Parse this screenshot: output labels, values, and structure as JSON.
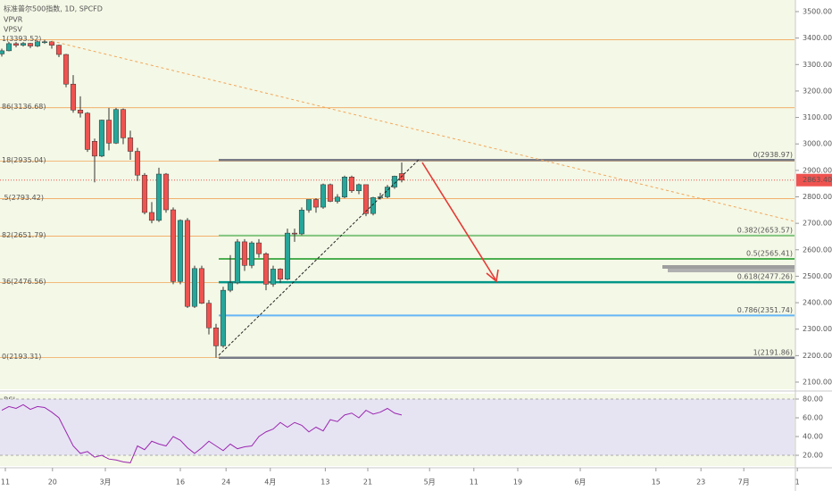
{
  "chart_data": {
    "type": "candlestick",
    "title": "标准普尔500指数, 1D, SPCFD",
    "indicators": [
      "VPVR",
      "VPSV"
    ],
    "xlim": [
      -0.25,
      111
    ],
    "xticks": [
      {
        "value": 0.5,
        "label": "11"
      },
      {
        "value": 7.1,
        "label": "20"
      },
      {
        "value": 14.5,
        "label": "3月"
      },
      {
        "value": 25,
        "label": "16"
      },
      {
        "value": 31.4,
        "label": "24"
      },
      {
        "value": 37.6,
        "label": "4月"
      },
      {
        "value": 45.3,
        "label": "13"
      },
      {
        "value": 51.25,
        "label": "21"
      },
      {
        "value": 59.9,
        "label": "5月"
      },
      {
        "value": 66.1,
        "label": "11"
      },
      {
        "value": 72.25,
        "label": "19"
      },
      {
        "value": 81,
        "label": "6月"
      },
      {
        "value": 91.6,
        "label": "15"
      },
      {
        "value": 97.9,
        "label": "23"
      },
      {
        "value": 103.9,
        "label": "7月"
      },
      {
        "value": 111.4,
        "label": "1"
      }
    ],
    "ylim": [
      2100,
      3500
    ],
    "yticks": [
      {
        "value": 2100,
        "label": "2100.00"
      },
      {
        "value": 2200,
        "label": "2200.00"
      },
      {
        "value": 2300,
        "label": "2300.00"
      },
      {
        "value": 2400,
        "label": "2400.00"
      },
      {
        "value": 2500,
        "label": "2500.00"
      },
      {
        "value": 2600,
        "label": "2600.00"
      },
      {
        "value": 2700,
        "label": "2700.00"
      },
      {
        "value": 2800,
        "label": "2800.00"
      },
      {
        "value": 2900,
        "label": "2900.00"
      },
      {
        "value": 3000,
        "label": "3000.00"
      },
      {
        "value": 3100,
        "label": "3100.00"
      },
      {
        "value": 3200,
        "label": "3200.00"
      },
      {
        "value": 3300,
        "label": "3300.00"
      },
      {
        "value": 3400,
        "label": "3400.00"
      },
      {
        "value": 3500,
        "label": "3500.00"
      }
    ],
    "grid": false,
    "up_color": "#26a69a",
    "down_color": "#ef5350",
    "ohlc": [
      [
        3340,
        3360,
        3330,
        3352
      ],
      [
        3352,
        3385,
        3350,
        3379
      ],
      [
        3379,
        3385,
        3365,
        3373
      ],
      [
        3373,
        3385,
        3368,
        3380
      ],
      [
        3380,
        3382,
        3362,
        3370
      ],
      [
        3370,
        3390,
        3366,
        3386
      ],
      [
        3386,
        3393.52,
        3378,
        3386
      ],
      [
        3386,
        3389,
        3360,
        3373
      ],
      [
        3373,
        3375,
        3328,
        3338
      ],
      [
        3338,
        3340,
        3214,
        3226
      ],
      [
        3226,
        3260,
        3118,
        3128
      ],
      [
        3128,
        3180,
        3100,
        3116
      ],
      [
        3116,
        3120,
        2970,
        2979
      ],
      [
        3010,
        3020,
        2855,
        2954
      ],
      [
        2954,
        3092,
        2950,
        3090
      ],
      [
        3090,
        3136,
        2976,
        3003
      ],
      [
        3003,
        3136,
        3000,
        3130
      ],
      [
        3130,
        3134,
        2999,
        3023
      ],
      [
        3023,
        3050,
        2940,
        2972
      ],
      [
        2972,
        2985,
        2860,
        2882
      ],
      [
        2882,
        2890,
        2734,
        2741
      ],
      [
        2741,
        2780,
        2700,
        2711
      ],
      [
        2711,
        2910,
        2705,
        2886
      ],
      [
        2886,
        2890,
        2740,
        2751
      ],
      [
        2751,
        2760,
        2470,
        2480
      ],
      [
        2480,
        2715,
        2470,
        2711
      ],
      [
        2711,
        2720,
        2380,
        2386
      ],
      [
        2386,
        2540,
        2380,
        2529
      ],
      [
        2529,
        2540,
        2395,
        2398
      ],
      [
        2398,
        2410,
        2280,
        2305
      ],
      [
        2305,
        2320,
        2191.86,
        2237
      ],
      [
        2237,
        2460,
        2230,
        2447
      ],
      [
        2447,
        2580,
        2440,
        2475
      ],
      [
        2475,
        2640,
        2470,
        2630
      ],
      [
        2630,
        2640,
        2520,
        2541
      ],
      [
        2541,
        2632,
        2530,
        2626
      ],
      [
        2626,
        2640,
        2570,
        2585
      ],
      [
        2585,
        2590,
        2447,
        2470
      ],
      [
        2470,
        2540,
        2460,
        2527
      ],
      [
        2527,
        2530,
        2475,
        2489
      ],
      [
        2489,
        2680,
        2485,
        2663
      ],
      [
        2663,
        2680,
        2630,
        2660
      ],
      [
        2660,
        2760,
        2655,
        2750
      ],
      [
        2750,
        2790,
        2740,
        2790
      ],
      [
        2790,
        2795,
        2740,
        2761
      ],
      [
        2761,
        2850,
        2755,
        2846
      ],
      [
        2846,
        2850,
        2780,
        2783
      ],
      [
        2783,
        2810,
        2775,
        2799
      ],
      [
        2799,
        2880,
        2795,
        2875
      ],
      [
        2875,
        2880,
        2815,
        2823
      ],
      [
        2823,
        2850,
        2810,
        2846
      ],
      [
        2846,
        2846,
        2727,
        2737
      ],
      [
        2737,
        2800,
        2730,
        2797
      ],
      [
        2797,
        2815,
        2790,
        2800
      ],
      [
        2800,
        2845,
        2795,
        2837
      ],
      [
        2837,
        2880,
        2830,
        2878
      ],
      [
        2888,
        2930,
        2855,
        2863
      ]
    ],
    "last_price": {
      "value": 2863.4,
      "label": "2863.40"
    },
    "fib_left": {
      "color": "#f2a65a",
      "levels": [
        {
          "value": 3393.52,
          "label": "1(3393.52)"
        },
        {
          "value": 3136.68,
          "label": "86(3136.68)"
        },
        {
          "value": 2935.04,
          "label": "18(2935.04)"
        },
        {
          "value": 2793.42,
          "label": ".5(2793.42)"
        },
        {
          "value": 2651.79,
          "label": "82(2651.79)"
        },
        {
          "value": 2476.56,
          "label": "36(2476.56)"
        },
        {
          "value": 2193.31,
          "label": "0(2193.31)"
        }
      ]
    },
    "fib_right": [
      {
        "value": 2938.97,
        "label": "0(2938.97)",
        "color": "#787b86"
      },
      {
        "value": 2653.57,
        "label": "0.382(2653.57)",
        "color": "#81c784"
      },
      {
        "value": 2565.41,
        "label": "0.5(2565.41)",
        "color": "#4caf50"
      },
      {
        "value": 2477.26,
        "label": "0.618(2477.26)",
        "color": "#009688"
      },
      {
        "value": 2351.74,
        "label": "0.786(2351.74)",
        "color": "#64b5f6"
      },
      {
        "value": 2191.86,
        "label": "1(2191.86)",
        "color": "#787b86"
      }
    ],
    "rsi": {
      "title": "RSI",
      "color": "#9c27b0",
      "ylim": [
        8.6,
        86.7
      ],
      "yticks": [
        {
          "value": 20,
          "label": "20.00"
        },
        {
          "value": 40,
          "label": "40.00"
        },
        {
          "value": 60,
          "label": "60.00"
        },
        {
          "value": 80,
          "label": "80.00"
        }
      ],
      "values": [
        68,
        72,
        70,
        74,
        69,
        72,
        71,
        66,
        60,
        45,
        30,
        22,
        24,
        18,
        20,
        16,
        15,
        13,
        12,
        30,
        26,
        35,
        32,
        30,
        40,
        36,
        28,
        22,
        28,
        35,
        30,
        25,
        32,
        27,
        29,
        30,
        40,
        45,
        48,
        55,
        50,
        55,
        52,
        45,
        50,
        46,
        58,
        56,
        63,
        65,
        60,
        68,
        64,
        66,
        70,
        65,
        63
      ]
    }
  }
}
